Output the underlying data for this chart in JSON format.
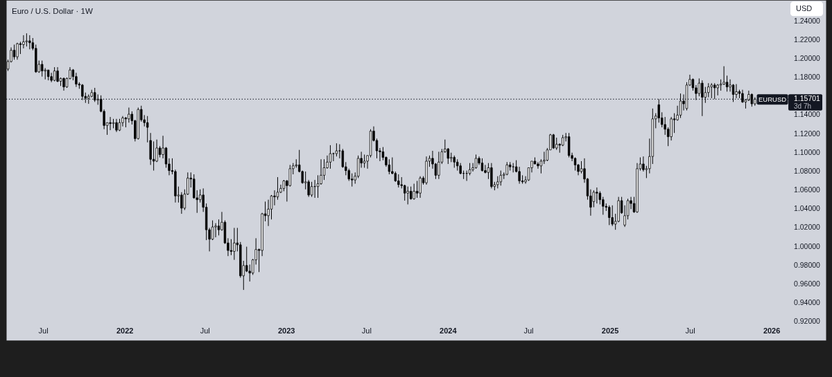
{
  "chart_data": {
    "type": "candlestick",
    "title": "Euro / U.S. Dollar · 1W",
    "ylabel": "USD",
    "color": "#000000",
    "x": [
      "2021-04-12",
      "2021-04-19",
      "2021-04-26",
      "2021-05-03",
      "2021-05-10",
      "2021-05-17",
      "2021-05-24",
      "2021-05-31",
      "2021-06-07",
      "2021-06-14",
      "2021-06-21",
      "2021-06-28",
      "2021-07-05",
      "2021-07-12",
      "2021-07-19",
      "2021-07-26",
      "2021-08-02",
      "2021-08-09",
      "2021-08-16",
      "2021-08-23",
      "2021-08-30",
      "2021-09-06",
      "2021-09-13",
      "2021-09-20",
      "2021-09-27",
      "2021-10-04",
      "2021-10-11",
      "2021-10-18",
      "2021-10-25",
      "2021-11-01",
      "2021-11-08",
      "2021-11-15",
      "2021-11-22",
      "2021-11-29",
      "2021-12-06",
      "2021-12-13",
      "2021-12-20",
      "2021-12-27",
      "2022-01-03",
      "2022-01-10",
      "2022-01-17",
      "2022-01-24",
      "2022-01-31",
      "2022-02-07",
      "2022-02-14",
      "2022-02-21",
      "2022-02-28",
      "2022-03-07",
      "2022-03-14",
      "2022-03-21",
      "2022-03-28",
      "2022-04-04",
      "2022-04-11",
      "2022-04-18",
      "2022-04-25",
      "2022-05-02",
      "2022-05-09",
      "2022-05-16",
      "2022-05-23",
      "2022-05-30",
      "2022-06-06",
      "2022-06-13",
      "2022-06-20",
      "2022-06-27",
      "2022-07-04",
      "2022-07-11",
      "2022-07-18",
      "2022-07-25",
      "2022-08-01",
      "2022-08-08",
      "2022-08-15",
      "2022-08-22",
      "2022-08-29",
      "2022-09-05",
      "2022-09-12",
      "2022-09-19",
      "2022-09-26",
      "2022-10-03",
      "2022-10-10",
      "2022-10-17",
      "2022-10-24",
      "2022-10-31",
      "2022-11-07",
      "2022-11-14",
      "2022-11-21",
      "2022-11-28",
      "2022-12-05",
      "2022-12-12",
      "2022-12-19",
      "2022-12-26",
      "2023-01-02",
      "2023-01-09",
      "2023-01-16",
      "2023-01-23",
      "2023-01-30",
      "2023-02-06",
      "2023-02-13",
      "2023-02-20",
      "2023-02-27",
      "2023-03-06",
      "2023-03-13",
      "2023-03-20",
      "2023-03-27",
      "2023-04-03",
      "2023-04-10",
      "2023-04-17",
      "2023-04-24",
      "2023-05-01",
      "2023-05-08",
      "2023-05-15",
      "2023-05-22",
      "2023-05-29",
      "2023-06-05",
      "2023-06-12",
      "2023-06-19",
      "2023-06-26",
      "2023-07-03",
      "2023-07-10",
      "2023-07-17",
      "2023-07-24",
      "2023-07-31",
      "2023-08-07",
      "2023-08-14",
      "2023-08-21",
      "2023-08-28",
      "2023-09-04",
      "2023-09-11",
      "2023-09-18",
      "2023-09-25",
      "2023-10-02",
      "2023-10-09",
      "2023-10-16",
      "2023-10-23",
      "2023-10-30",
      "2023-11-06",
      "2023-11-13",
      "2023-11-20",
      "2023-11-27",
      "2023-12-04",
      "2023-12-11",
      "2023-12-18",
      "2023-12-25",
      "2024-01-01",
      "2024-01-08",
      "2024-01-15",
      "2024-01-22",
      "2024-01-29",
      "2024-02-05",
      "2024-02-12",
      "2024-02-19",
      "2024-02-26",
      "2024-03-04",
      "2024-03-11",
      "2024-03-18",
      "2024-03-25",
      "2024-04-01",
      "2024-04-08",
      "2024-04-15",
      "2024-04-22",
      "2024-04-29",
      "2024-05-06",
      "2024-05-13",
      "2024-05-20",
      "2024-05-27",
      "2024-06-03",
      "2024-06-10",
      "2024-06-17",
      "2024-06-24",
      "2024-07-01",
      "2024-07-08",
      "2024-07-15",
      "2024-07-22",
      "2024-07-29",
      "2024-08-05",
      "2024-08-12",
      "2024-08-19",
      "2024-08-26",
      "2024-09-02",
      "2024-09-09",
      "2024-09-16",
      "2024-09-23",
      "2024-09-30",
      "2024-10-07",
      "2024-10-14",
      "2024-10-21",
      "2024-10-28",
      "2024-11-04",
      "2024-11-11",
      "2024-11-18",
      "2024-11-25",
      "2024-12-02",
      "2024-12-09",
      "2024-12-16",
      "2024-12-23",
      "2024-12-30",
      "2025-01-06",
      "2025-01-13",
      "2025-01-20",
      "2025-01-27",
      "2025-02-03",
      "2025-02-10",
      "2025-02-17",
      "2025-02-24",
      "2025-03-03",
      "2025-03-10",
      "2025-03-17",
      "2025-03-24",
      "2025-03-31",
      "2025-04-07",
      "2025-04-14",
      "2025-04-21",
      "2025-04-28",
      "2025-05-05",
      "2025-05-12",
      "2025-05-19",
      "2025-05-26",
      "2025-06-02",
      "2025-06-09",
      "2025-06-16",
      "2025-06-23",
      "2025-06-30",
      "2025-07-07",
      "2025-07-14",
      "2025-07-21",
      "2025-07-28",
      "2025-08-04",
      "2025-08-11",
      "2025-08-18",
      "2025-08-25",
      "2025-09-01",
      "2025-09-08",
      "2025-09-15",
      "2025-09-22",
      "2025-09-29",
      "2025-10-06",
      "2025-10-13",
      "2025-10-20",
      "2025-10-27",
      "2025-11-03",
      "2025-11-10",
      "2025-11-17",
      "2025-11-24"
    ],
    "ohlc": [
      [
        1.189,
        1.199,
        1.187,
        1.197
      ],
      [
        1.197,
        1.212,
        1.196,
        1.209
      ],
      [
        1.209,
        1.215,
        1.199,
        1.202
      ],
      [
        1.202,
        1.217,
        1.199,
        1.216
      ],
      [
        1.216,
        1.218,
        1.205,
        1.215
      ],
      [
        1.215,
        1.225,
        1.211,
        1.218
      ],
      [
        1.218,
        1.227,
        1.213,
        1.219
      ],
      [
        1.219,
        1.225,
        1.21,
        1.217
      ],
      [
        1.217,
        1.222,
        1.209,
        1.211
      ],
      [
        1.211,
        1.215,
        1.185,
        1.186
      ],
      [
        1.186,
        1.198,
        1.185,
        1.194
      ],
      [
        1.194,
        1.198,
        1.181,
        1.187
      ],
      [
        1.187,
        1.19,
        1.178,
        1.188
      ],
      [
        1.188,
        1.188,
        1.177,
        1.181
      ],
      [
        1.181,
        1.185,
        1.175,
        1.177
      ],
      [
        1.177,
        1.191,
        1.176,
        1.187
      ],
      [
        1.187,
        1.191,
        1.175,
        1.176
      ],
      [
        1.176,
        1.18,
        1.171,
        1.179
      ],
      [
        1.179,
        1.18,
        1.166,
        1.17
      ],
      [
        1.17,
        1.18,
        1.169,
        1.179
      ],
      [
        1.179,
        1.191,
        1.178,
        1.188
      ],
      [
        1.188,
        1.189,
        1.177,
        1.181
      ],
      [
        1.181,
        1.185,
        1.17,
        1.173
      ],
      [
        1.173,
        1.175,
        1.168,
        1.172
      ],
      [
        1.172,
        1.173,
        1.156,
        1.16
      ],
      [
        1.16,
        1.164,
        1.153,
        1.158
      ],
      [
        1.158,
        1.162,
        1.152,
        1.16
      ],
      [
        1.16,
        1.167,
        1.159,
        1.164
      ],
      [
        1.164,
        1.169,
        1.154,
        1.156
      ],
      [
        1.156,
        1.162,
        1.151,
        1.157
      ],
      [
        1.157,
        1.161,
        1.143,
        1.144
      ],
      [
        1.144,
        1.146,
        1.125,
        1.129
      ],
      [
        1.129,
        1.132,
        1.119,
        1.132
      ],
      [
        1.132,
        1.138,
        1.124,
        1.131
      ],
      [
        1.131,
        1.136,
        1.126,
        1.132
      ],
      [
        1.132,
        1.136,
        1.122,
        1.124
      ],
      [
        1.124,
        1.136,
        1.123,
        1.132
      ],
      [
        1.132,
        1.139,
        1.128,
        1.137
      ],
      [
        1.137,
        1.138,
        1.127,
        1.136
      ],
      [
        1.136,
        1.148,
        1.132,
        1.141
      ],
      [
        1.141,
        1.144,
        1.13,
        1.134
      ],
      [
        1.134,
        1.135,
        1.112,
        1.115
      ],
      [
        1.115,
        1.148,
        1.114,
        1.146
      ],
      [
        1.146,
        1.15,
        1.133,
        1.135
      ],
      [
        1.135,
        1.14,
        1.128,
        1.132
      ],
      [
        1.132,
        1.139,
        1.111,
        1.127
      ],
      [
        1.113,
        1.121,
        1.087,
        1.093
      ],
      [
        1.093,
        1.112,
        1.081,
        1.091
      ],
      [
        1.091,
        1.114,
        1.09,
        1.105
      ],
      [
        1.105,
        1.107,
        1.095,
        1.098
      ],
      [
        1.098,
        1.118,
        1.094,
        1.105
      ],
      [
        1.105,
        1.106,
        1.084,
        1.088
      ],
      [
        1.088,
        1.094,
        1.076,
        1.081
      ],
      [
        1.081,
        1.094,
        1.077,
        1.08
      ],
      [
        1.08,
        1.082,
        1.047,
        1.054
      ],
      [
        1.054,
        1.064,
        1.047,
        1.055
      ],
      [
        1.055,
        1.058,
        1.035,
        1.041
      ],
      [
        1.041,
        1.061,
        1.039,
        1.056
      ],
      [
        1.056,
        1.079,
        1.055,
        1.073
      ],
      [
        1.073,
        1.079,
        1.063,
        1.072
      ],
      [
        1.072,
        1.077,
        1.051,
        1.052
      ],
      [
        1.052,
        1.06,
        1.036,
        1.05
      ],
      [
        1.05,
        1.061,
        1.047,
        1.055
      ],
      [
        1.055,
        1.062,
        1.037,
        1.042
      ],
      [
        1.042,
        1.046,
        1.007,
        1.018
      ],
      [
        1.018,
        1.02,
        0.995,
        1.008
      ],
      [
        1.008,
        1.028,
        1.007,
        1.021
      ],
      [
        1.021,
        1.025,
        1.01,
        1.022
      ],
      [
        1.022,
        1.029,
        1.012,
        1.018
      ],
      [
        1.018,
        1.037,
        1.017,
        1.026
      ],
      [
        1.026,
        1.028,
        1.003,
        1.004
      ],
      [
        1.004,
        1.009,
        0.99,
        0.996
      ],
      [
        0.996,
        1.008,
        0.991,
        0.995
      ],
      [
        0.995,
        1.02,
        0.986,
        1.004
      ],
      [
        1.004,
        1.02,
        0.995,
        1.002
      ],
      [
        1.002,
        1.005,
        0.967,
        0.969
      ],
      [
        0.969,
        0.985,
        0.954,
        0.98
      ],
      [
        0.98,
        1.0,
        0.973,
        0.974
      ],
      [
        0.974,
        0.981,
        0.963,
        0.972
      ],
      [
        0.972,
        0.987,
        0.97,
        0.986
      ],
      [
        0.986,
        1.009,
        0.981,
        0.997
      ],
      [
        0.997,
        0.998,
        0.973,
        0.996
      ],
      [
        0.996,
        1.036,
        0.99,
        1.035
      ],
      [
        1.035,
        1.048,
        1.027,
        1.033
      ],
      [
        1.033,
        1.05,
        1.022,
        1.04
      ],
      [
        1.04,
        1.055,
        1.029,
        1.054
      ],
      [
        1.054,
        1.06,
        1.044,
        1.053
      ],
      [
        1.053,
        1.074,
        1.05,
        1.058
      ],
      [
        1.058,
        1.066,
        1.057,
        1.062
      ],
      [
        1.062,
        1.071,
        1.059,
        1.07
      ],
      [
        1.07,
        1.071,
        1.048,
        1.065
      ],
      [
        1.065,
        1.087,
        1.064,
        1.083
      ],
      [
        1.083,
        1.089,
        1.077,
        1.086
      ],
      [
        1.086,
        1.093,
        1.084,
        1.087
      ],
      [
        1.087,
        1.103,
        1.079,
        1.08
      ],
      [
        1.08,
        1.081,
        1.067,
        1.068
      ],
      [
        1.068,
        1.08,
        1.061,
        1.069
      ],
      [
        1.069,
        1.071,
        1.053,
        1.055
      ],
      [
        1.055,
        1.069,
        1.053,
        1.064
      ],
      [
        1.064,
        1.071,
        1.052,
        1.064
      ],
      [
        1.064,
        1.076,
        1.052,
        1.067
      ],
      [
        1.067,
        1.093,
        1.066,
        1.076
      ],
      [
        1.076,
        1.093,
        1.071,
        1.084
      ],
      [
        1.084,
        1.097,
        1.083,
        1.09
      ],
      [
        1.09,
        1.108,
        1.083,
        1.099
      ],
      [
        1.099,
        1.1,
        1.091,
        1.099
      ],
      [
        1.099,
        1.11,
        1.096,
        1.102
      ],
      [
        1.102,
        1.109,
        1.094,
        1.102
      ],
      [
        1.102,
        1.104,
        1.084,
        1.085
      ],
      [
        1.085,
        1.09,
        1.076,
        1.081
      ],
      [
        1.081,
        1.083,
        1.07,
        1.072
      ],
      [
        1.072,
        1.078,
        1.064,
        1.071
      ],
      [
        1.071,
        1.079,
        1.067,
        1.075
      ],
      [
        1.075,
        1.097,
        1.073,
        1.094
      ],
      [
        1.094,
        1.101,
        1.084,
        1.089
      ],
      [
        1.089,
        1.098,
        1.084,
        1.091
      ],
      [
        1.091,
        1.097,
        1.083,
        1.097
      ],
      [
        1.097,
        1.125,
        1.095,
        1.123
      ],
      [
        1.123,
        1.128,
        1.112,
        1.113
      ],
      [
        1.113,
        1.115,
        1.094,
        1.102
      ],
      [
        1.102,
        1.105,
        1.091,
        1.101
      ],
      [
        1.101,
        1.106,
        1.092,
        1.095
      ],
      [
        1.095,
        1.096,
        1.085,
        1.087
      ],
      [
        1.087,
        1.093,
        1.077,
        1.08
      ],
      [
        1.08,
        1.095,
        1.077,
        1.078
      ],
      [
        1.078,
        1.08,
        1.069,
        1.07
      ],
      [
        1.07,
        1.077,
        1.063,
        1.066
      ],
      [
        1.066,
        1.074,
        1.062,
        1.065
      ],
      [
        1.065,
        1.066,
        1.049,
        1.057
      ],
      [
        1.057,
        1.064,
        1.045,
        1.059
      ],
      [
        1.059,
        1.064,
        1.05,
        1.051
      ],
      [
        1.051,
        1.067,
        1.05,
        1.059
      ],
      [
        1.059,
        1.07,
        1.052,
        1.057
      ],
      [
        1.057,
        1.075,
        1.052,
        1.073
      ],
      [
        1.073,
        1.075,
        1.066,
        1.068
      ],
      [
        1.068,
        1.096,
        1.066,
        1.091
      ],
      [
        1.091,
        1.097,
        1.085,
        1.094
      ],
      [
        1.094,
        1.102,
        1.083,
        1.088
      ],
      [
        1.088,
        1.089,
        1.072,
        1.076
      ],
      [
        1.076,
        1.101,
        1.072,
        1.09
      ],
      [
        1.09,
        1.104,
        1.088,
        1.101
      ],
      [
        1.101,
        1.114,
        1.1,
        1.104
      ],
      [
        1.104,
        1.105,
        1.088,
        1.094
      ],
      [
        1.094,
        1.1,
        1.09,
        1.095
      ],
      [
        1.095,
        1.097,
        1.084,
        1.09
      ],
      [
        1.09,
        1.093,
        1.081,
        1.086
      ],
      [
        1.086,
        1.089,
        1.077,
        1.078
      ],
      [
        1.078,
        1.081,
        1.072,
        1.078
      ],
      [
        1.078,
        1.081,
        1.07,
        1.078
      ],
      [
        1.078,
        1.089,
        1.076,
        1.082
      ],
      [
        1.082,
        1.089,
        1.08,
        1.084
      ],
      [
        1.084,
        1.098,
        1.083,
        1.094
      ],
      [
        1.094,
        1.096,
        1.087,
        1.089
      ],
      [
        1.089,
        1.094,
        1.08,
        1.081
      ],
      [
        1.081,
        1.087,
        1.078,
        1.079
      ],
      [
        1.079,
        1.089,
        1.072,
        1.084
      ],
      [
        1.084,
        1.089,
        1.062,
        1.064
      ],
      [
        1.064,
        1.069,
        1.06,
        1.066
      ],
      [
        1.066,
        1.075,
        1.062,
        1.069
      ],
      [
        1.069,
        1.081,
        1.065,
        1.076
      ],
      [
        1.076,
        1.079,
        1.072,
        1.077
      ],
      [
        1.077,
        1.09,
        1.076,
        1.087
      ],
      [
        1.087,
        1.09,
        1.081,
        1.085
      ],
      [
        1.085,
        1.089,
        1.079,
        1.085
      ],
      [
        1.085,
        1.092,
        1.079,
        1.08
      ],
      [
        1.08,
        1.085,
        1.067,
        1.07
      ],
      [
        1.07,
        1.076,
        1.067,
        1.069
      ],
      [
        1.069,
        1.075,
        1.067,
        1.071
      ],
      [
        1.071,
        1.084,
        1.07,
        1.084
      ],
      [
        1.084,
        1.091,
        1.079,
        1.091
      ],
      [
        1.091,
        1.095,
        1.088,
        1.088
      ],
      [
        1.088,
        1.09,
        1.083,
        1.086
      ],
      [
        1.086,
        1.093,
        1.078,
        1.091
      ],
      [
        1.091,
        1.101,
        1.088,
        1.092
      ],
      [
        1.092,
        1.105,
        1.091,
        1.103
      ],
      [
        1.103,
        1.12,
        1.103,
        1.119
      ],
      [
        1.119,
        1.12,
        1.104,
        1.105
      ],
      [
        1.105,
        1.116,
        1.103,
        1.109
      ],
      [
        1.109,
        1.11,
        1.1,
        1.108
      ],
      [
        1.108,
        1.119,
        1.107,
        1.116
      ],
      [
        1.116,
        1.121,
        1.112,
        1.117
      ],
      [
        1.117,
        1.121,
        1.095,
        1.097
      ],
      [
        1.097,
        1.1,
        1.091,
        1.094
      ],
      [
        1.094,
        1.095,
        1.081,
        1.087
      ],
      [
        1.087,
        1.088,
        1.076,
        1.08
      ],
      [
        1.08,
        1.091,
        1.078,
        1.083
      ],
      [
        1.083,
        1.094,
        1.068,
        1.072
      ],
      [
        1.072,
        1.073,
        1.05,
        1.054
      ],
      [
        1.054,
        1.061,
        1.033,
        1.042
      ],
      [
        1.048,
        1.06,
        1.042,
        1.058
      ],
      [
        1.058,
        1.063,
        1.046,
        1.057
      ],
      [
        1.057,
        1.059,
        1.045,
        1.05
      ],
      [
        1.05,
        1.053,
        1.034,
        1.043
      ],
      [
        1.043,
        1.046,
        1.038,
        1.042
      ],
      [
        1.042,
        1.044,
        1.023,
        1.031
      ],
      [
        1.031,
        1.044,
        1.022,
        1.024
      ],
      [
        1.024,
        1.035,
        1.018,
        1.027
      ],
      [
        1.027,
        1.053,
        1.026,
        1.049
      ],
      [
        1.049,
        1.053,
        1.035,
        1.036
      ],
      [
        1.023,
        1.044,
        1.021,
        1.033
      ],
      [
        1.033,
        1.051,
        1.029,
        1.049
      ],
      [
        1.049,
        1.053,
        1.04,
        1.046
      ],
      [
        1.046,
        1.053,
        1.036,
        1.037
      ],
      [
        1.037,
        1.089,
        1.036,
        1.083
      ],
      [
        1.083,
        1.095,
        1.081,
        1.088
      ],
      [
        1.088,
        1.096,
        1.08,
        1.082
      ],
      [
        1.082,
        1.086,
        1.073,
        1.083
      ],
      [
        1.083,
        1.115,
        1.078,
        1.096
      ],
      [
        1.096,
        1.147,
        1.088,
        1.136
      ],
      [
        1.136,
        1.142,
        1.126,
        1.139
      ],
      [
        1.151,
        1.157,
        1.132,
        1.137
      ],
      [
        1.137,
        1.143,
        1.127,
        1.13
      ],
      [
        1.13,
        1.138,
        1.119,
        1.125
      ],
      [
        1.125,
        1.127,
        1.107,
        1.117
      ],
      [
        1.117,
        1.138,
        1.113,
        1.136
      ],
      [
        1.136,
        1.142,
        1.121,
        1.135
      ],
      [
        1.135,
        1.15,
        1.134,
        1.14
      ],
      [
        1.14,
        1.163,
        1.137,
        1.155
      ],
      [
        1.155,
        1.162,
        1.145,
        1.152
      ],
      [
        1.147,
        1.175,
        1.145,
        1.172
      ],
      [
        1.172,
        1.183,
        1.171,
        1.178
      ],
      [
        1.178,
        1.179,
        1.166,
        1.169
      ],
      [
        1.169,
        1.172,
        1.156,
        1.163
      ],
      [
        1.163,
        1.179,
        1.16,
        1.174
      ],
      [
        1.174,
        1.177,
        1.139,
        1.159
      ],
      [
        1.159,
        1.17,
        1.153,
        1.164
      ],
      [
        1.164,
        1.174,
        1.159,
        1.17
      ],
      [
        1.17,
        1.174,
        1.158,
        1.172
      ],
      [
        1.172,
        1.174,
        1.157,
        1.169
      ],
      [
        1.169,
        1.173,
        1.161,
        1.172
      ],
      [
        1.172,
        1.178,
        1.166,
        1.173
      ],
      [
        1.173,
        1.192,
        1.172,
        1.175
      ],
      [
        1.175,
        1.182,
        1.165,
        1.17
      ],
      [
        1.17,
        1.178,
        1.165,
        1.172
      ],
      [
        1.172,
        1.173,
        1.154,
        1.162
      ],
      [
        1.162,
        1.173,
        1.158,
        1.165
      ],
      [
        1.165,
        1.167,
        1.158,
        1.163
      ],
      [
        1.163,
        1.167,
        1.153,
        1.154
      ],
      [
        1.154,
        1.157,
        1.147,
        1.156
      ],
      [
        1.156,
        1.166,
        1.155,
        1.162
      ],
      [
        1.162,
        1.163,
        1.149,
        1.152
      ],
      [
        1.152,
        1.159,
        1.15,
        1.157
      ]
    ],
    "colors": [
      "#ffffff",
      "#ffffff",
      "#000000",
      "#ffffff",
      "#000000",
      "#ffffff",
      "#ffffff",
      "#000000",
      "#000000",
      "#000000",
      "#ffffff",
      "#000000",
      "#ffffff",
      "#000000",
      "#000000",
      "#ffffff",
      "#000000",
      "#ffffff",
      "#000000",
      "#ffffff",
      "#ffffff",
      "#000000",
      "#000000",
      "#000000",
      "#000000",
      "#000000",
      "#ffffff",
      "#ffffff",
      "#000000",
      "#ffffff",
      "#000000",
      "#000000",
      "#ffffff",
      "#000000",
      "#ffffff",
      "#000000",
      "#ffffff",
      "#ffffff",
      "#000000",
      "#ffffff",
      "#000000",
      "#000000",
      "#ffffff",
      "#000000",
      "#000000",
      "#000000",
      "#000000",
      "#000000",
      "#ffffff",
      "#000000",
      "#ffffff",
      "#000000",
      "#000000",
      "#000000",
      "#000000",
      "#ffffff",
      "#000000",
      "#ffffff",
      "#ffffff",
      "#000000",
      "#000000",
      "#000000",
      "#ffffff",
      "#000000",
      "#000000",
      "#000000",
      "#ffffff",
      "#ffffff",
      "#000000",
      "#ffffff",
      "#000000",
      "#000000",
      "#000000",
      "#ffffff",
      "#000000",
      "#000000",
      "#ffffff",
      "#000000",
      "#000000",
      "#ffffff",
      "#ffffff",
      "#000000",
      "#ffffff",
      "#000000",
      "#ffffff",
      "#ffffff",
      "#000000",
      "#ffffff",
      "#ffffff",
      "#ffffff",
      "#000000",
      "#ffffff",
      "#ffffff",
      "#ffffff",
      "#000000",
      "#000000",
      "#ffffff",
      "#000000",
      "#ffffff",
      "#000000",
      "#ffffff",
      "#ffffff",
      "#ffffff",
      "#ffffff",
      "#ffffff",
      "#000000",
      "#ffffff",
      "#000000",
      "#000000",
      "#000000",
      "#000000",
      "#000000",
      "#ffffff",
      "#ffffff",
      "#000000",
      "#ffffff",
      "#ffffff",
      "#ffffff",
      "#000000",
      "#000000",
      "#000000",
      "#000000",
      "#000000",
      "#000000",
      "#000000",
      "#000000",
      "#000000",
      "#000000",
      "#000000",
      "#ffffff",
      "#000000",
      "#ffffff",
      "#000000",
      "#ffffff",
      "#000000",
      "#ffffff",
      "#ffffff",
      "#000000",
      "#000000",
      "#ffffff",
      "#ffffff",
      "#ffffff",
      "#000000",
      "#ffffff",
      "#000000",
      "#000000",
      "#000000",
      "#000000",
      "#000000",
      "#ffffff",
      "#ffffff",
      "#ffffff",
      "#000000",
      "#000000",
      "#000000",
      "#ffffff",
      "#000000",
      "#ffffff",
      "#ffffff",
      "#ffffff",
      "#ffffff",
      "#ffffff",
      "#000000",
      "#000000",
      "#000000",
      "#000000",
      "#000000",
      "#ffffff",
      "#ffffff",
      "#ffffff",
      "#000000",
      "#000000",
      "#ffffff",
      "#ffffff",
      "#ffffff",
      "#ffffff",
      "#000000",
      "#ffffff",
      "#000000",
      "#ffffff",
      "#ffffff",
      "#000000",
      "#000000",
      "#000000",
      "#000000",
      "#ffffff",
      "#000000",
      "#000000",
      "#000000",
      "#ffffff",
      "#000000",
      "#000000",
      "#000000",
      "#000000",
      "#000000",
      "#000000",
      "#ffffff",
      "#ffffff",
      "#000000",
      "#ffffff",
      "#ffffff",
      "#000000",
      "#000000",
      "#ffffff",
      "#ffffff",
      "#000000",
      "#ffffff",
      "#ffffff",
      "#ffffff",
      "#ffffff",
      "#000000",
      "#000000",
      "#000000",
      "#000000",
      "#ffffff",
      "#000000",
      "#ffffff",
      "#ffffff",
      "#000000",
      "#ffffff",
      "#ffffff",
      "#000000",
      "#000000",
      "#ffffff",
      "#000000",
      "#ffffff",
      "#ffffff",
      "#ffffff",
      "#000000",
      "#ffffff",
      "#ffffff",
      "#ffffff",
      "#000000",
      "#ffffff",
      "#000000",
      "#ffffff",
      "#000000",
      "#000000",
      "#ffffff",
      "#ffffff",
      "#000000",
      "#ffffff"
    ],
    "xlim": [
      "2021-04-08",
      "2026-05-03"
    ],
    "xticks": [
      {
        "value": "2021-07",
        "label": "Jul"
      },
      {
        "value": "2022-01",
        "label": "2022"
      },
      {
        "value": "2022-07",
        "label": "Jul"
      },
      {
        "value": "2023-01",
        "label": "2023"
      },
      {
        "value": "2023-07",
        "label": "Jul"
      },
      {
        "value": "2024-01",
        "label": "2024"
      },
      {
        "value": "2024-07",
        "label": "Jul"
      },
      {
        "value": "2025-01",
        "label": "2025"
      },
      {
        "value": "2025-07",
        "label": "Jul"
      },
      {
        "value": "2026-01",
        "label": "2026"
      }
    ],
    "ylim": [
      0.9005,
      1.2623
    ],
    "yticks": [
      {
        "value": 0.92,
        "label": "0.92000"
      },
      {
        "value": 0.94,
        "label": "0.94000"
      },
      {
        "value": 0.96,
        "label": "0.96000"
      },
      {
        "value": 0.98,
        "label": "0.98000"
      },
      {
        "value": 1.0,
        "label": "1.00000"
      },
      {
        "value": 1.02,
        "label": "1.02000"
      },
      {
        "value": 1.04,
        "label": "1.04000"
      },
      {
        "value": 1.06,
        "label": "1.06000"
      },
      {
        "value": 1.08,
        "label": "1.08000"
      },
      {
        "value": 1.1,
        "label": "1.10000"
      },
      {
        "value": 1.12,
        "label": "1.12000"
      },
      {
        "value": 1.14,
        "label": "1.14000"
      },
      {
        "value": 1.18,
        "label": "1.18000"
      },
      {
        "value": 1.2,
        "label": "1.20000"
      },
      {
        "value": 1.22,
        "label": "1.22000"
      },
      {
        "value": 1.24,
        "label": "1.24000"
      }
    ],
    "ref_lines": [
      {
        "axis": "y",
        "value": 1.15701,
        "label": "1.15701",
        "color": "#131722",
        "line_style": "dotted"
      }
    ],
    "annotations": [
      "EURUSD",
      "3d 7h"
    ]
  }
}
